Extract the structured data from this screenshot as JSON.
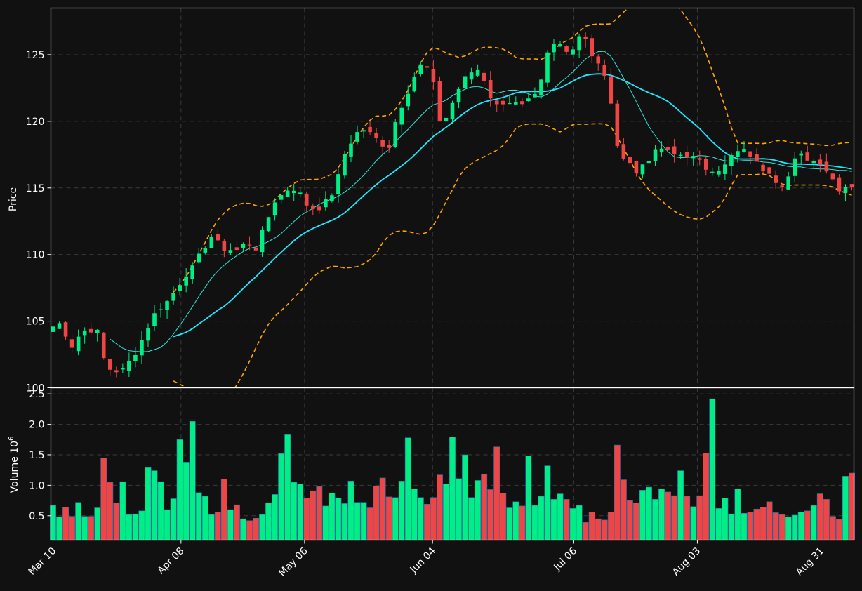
{
  "chart_data": {
    "type": "candlestick",
    "panels": [
      {
        "name": "price",
        "ylabel": "Price",
        "ylim": [
          100,
          128.5
        ],
        "yticks": [
          100,
          105,
          110,
          115,
          120,
          125
        ],
        "grid": true
      },
      {
        "name": "volume",
        "ylabel": "Volume  10",
        "ylabel_exponent": "6",
        "ylim": [
          0.1,
          2.6
        ],
        "yticks": [
          0.5,
          1.0,
          1.5,
          2.0,
          2.5
        ],
        "yticklabels": [
          "0.5",
          "1.0",
          "1.5",
          "2.0",
          "2.5"
        ],
        "grid": true
      }
    ],
    "x_range": [
      "2024-03-10",
      "2024-09-07"
    ],
    "x_ticks": [
      {
        "date": "2024-03-10",
        "label": "Mar 10"
      },
      {
        "date": "2024-04-08",
        "label": "Apr 08"
      },
      {
        "date": "2024-05-06",
        "label": "May 06"
      },
      {
        "date": "2024-06-04",
        "label": "Jun 04"
      },
      {
        "date": "2024-07-06",
        "label": "Jul 06"
      },
      {
        "date": "2024-08-03",
        "label": "Aug 03"
      },
      {
        "date": "2024-08-31",
        "label": "Aug 31"
      }
    ],
    "close_anchors": [
      [
        0,
        104.6
      ],
      [
        2,
        104.9
      ],
      [
        4,
        103.0
      ],
      [
        6,
        104.0
      ],
      [
        8,
        104.5
      ],
      [
        10,
        104.2
      ],
      [
        12,
        101.5
      ],
      [
        14,
        101.3
      ],
      [
        16,
        101.3
      ],
      [
        18,
        102.3
      ],
      [
        20,
        103.5
      ],
      [
        22,
        105.0
      ],
      [
        24,
        106.0
      ],
      [
        26,
        106.5
      ],
      [
        28,
        107.5
      ],
      [
        30,
        108.6
      ],
      [
        32,
        109.0
      ],
      [
        34,
        110.5
      ],
      [
        36,
        111.4
      ],
      [
        38,
        110.5
      ],
      [
        40,
        110.4
      ],
      [
        42,
        110.3
      ],
      [
        44,
        111.0
      ],
      [
        46,
        110.5
      ],
      [
        48,
        112.0
      ],
      [
        50,
        114.0
      ],
      [
        52,
        114.5
      ],
      [
        54,
        115.2
      ],
      [
        56,
        114.5
      ],
      [
        58,
        113.5
      ],
      [
        60,
        113.5
      ],
      [
        62,
        114.0
      ],
      [
        64,
        115.0
      ],
      [
        66,
        117.5
      ],
      [
        68,
        118.8
      ],
      [
        70,
        119.5
      ],
      [
        72,
        119.0
      ],
      [
        74,
        118.5
      ],
      [
        76,
        118.0
      ],
      [
        78,
        120.5
      ],
      [
        80,
        122.0
      ],
      [
        82,
        123.5
      ],
      [
        84,
        124.5
      ],
      [
        86,
        123.0
      ],
      [
        88,
        119.5
      ],
      [
        90,
        121.0
      ],
      [
        92,
        122.5
      ],
      [
        94,
        123.5
      ],
      [
        96,
        124.0
      ],
      [
        98,
        123.0
      ],
      [
        100,
        121.0
      ],
      [
        102,
        121.5
      ],
      [
        104,
        121.5
      ],
      [
        106,
        121.0
      ],
      [
        108,
        121.5
      ],
      [
        110,
        122.0
      ],
      [
        112,
        125.0
      ],
      [
        114,
        126.0
      ],
      [
        116,
        125.5
      ],
      [
        118,
        125.5
      ],
      [
        120,
        127.0
      ],
      [
        122,
        125.0
      ],
      [
        124,
        124.0
      ],
      [
        126,
        122.5
      ],
      [
        128,
        117.5
      ],
      [
        130,
        117.5
      ],
      [
        132,
        116.0
      ],
      [
        134,
        117.0
      ],
      [
        136,
        117.5
      ],
      [
        138,
        118.0
      ],
      [
        140,
        117.5
      ],
      [
        142,
        117.5
      ],
      [
        144,
        117.5
      ],
      [
        146,
        117.0
      ],
      [
        148,
        116.5
      ],
      [
        150,
        116.5
      ],
      [
        152,
        116.5
      ],
      [
        154,
        117.5
      ],
      [
        156,
        117.8
      ],
      [
        158,
        117.5
      ],
      [
        160,
        116.5
      ],
      [
        162,
        116.5
      ],
      [
        164,
        115.5
      ],
      [
        166,
        115.3
      ],
      [
        168,
        117.0
      ],
      [
        170,
        117.5
      ],
      [
        172,
        117.0
      ],
      [
        174,
        117.0
      ],
      [
        176,
        116.0
      ],
      [
        178,
        115.0
      ],
      [
        180,
        115.2
      ]
    ],
    "volume_millions": [
      0.67,
      0.48,
      0.64,
      0.49,
      0.72,
      0.49,
      0.49,
      0.63,
      1.45,
      1.05,
      0.71,
      1.06,
      0.52,
      0.53,
      0.58,
      1.29,
      1.24,
      1.06,
      0.6,
      0.78,
      1.75,
      1.38,
      2.05,
      0.88,
      0.82,
      0.52,
      0.56,
      1.1,
      0.6,
      0.68,
      0.45,
      0.42,
      0.46,
      0.52,
      0.71,
      0.85,
      1.52,
      1.83,
      1.05,
      1.02,
      0.79,
      0.91,
      0.98,
      0.66,
      0.87,
      0.79,
      0.7,
      1.07,
      0.72,
      0.72,
      0.63,
      0.99,
      1.12,
      0.81,
      0.8,
      1.07,
      1.78,
      0.94,
      0.8,
      0.69,
      0.8,
      1.17,
      1.02,
      1.79,
      1.11,
      1.5,
      0.8,
      1.08,
      1.18,
      0.93,
      1.63,
      0.87,
      0.63,
      0.73,
      0.66,
      1.48,
      0.67,
      0.82,
      1.32,
      0.77,
      0.86,
      0.77,
      0.62,
      0.67,
      0.39,
      0.56,
      0.45,
      0.43,
      0.56,
      1.66,
      1.09,
      0.75,
      0.71,
      0.92,
      0.97,
      0.77,
      0.94,
      0.89,
      0.83,
      1.24,
      0.82,
      0.65,
      0.83,
      1.53,
      2.42,
      0.62,
      0.79,
      0.53,
      0.94,
      0.54,
      0.56,
      0.61,
      0.64,
      0.73,
      0.55,
      0.52,
      0.48,
      0.51,
      0.56,
      0.58,
      0.67,
      0.86,
      0.77,
      0.49,
      0.44,
      1.15,
      1.2
    ],
    "moving_averages": [
      {
        "window": 10
      },
      {
        "window": 20
      }
    ],
    "bollinger_bands": {
      "window": 20,
      "std": 2
    }
  },
  "colors": {
    "background": "#111111",
    "up": "#00ee86",
    "down": "#f04545",
    "wick_up": "#00ee86",
    "wick_down": "#f04545",
    "ma_short": "#2ee6d6",
    "ma_long": "#1ee8ff",
    "bands": "#ffa500",
    "text": "#ffffff",
    "grid": "#3a3a3a"
  }
}
